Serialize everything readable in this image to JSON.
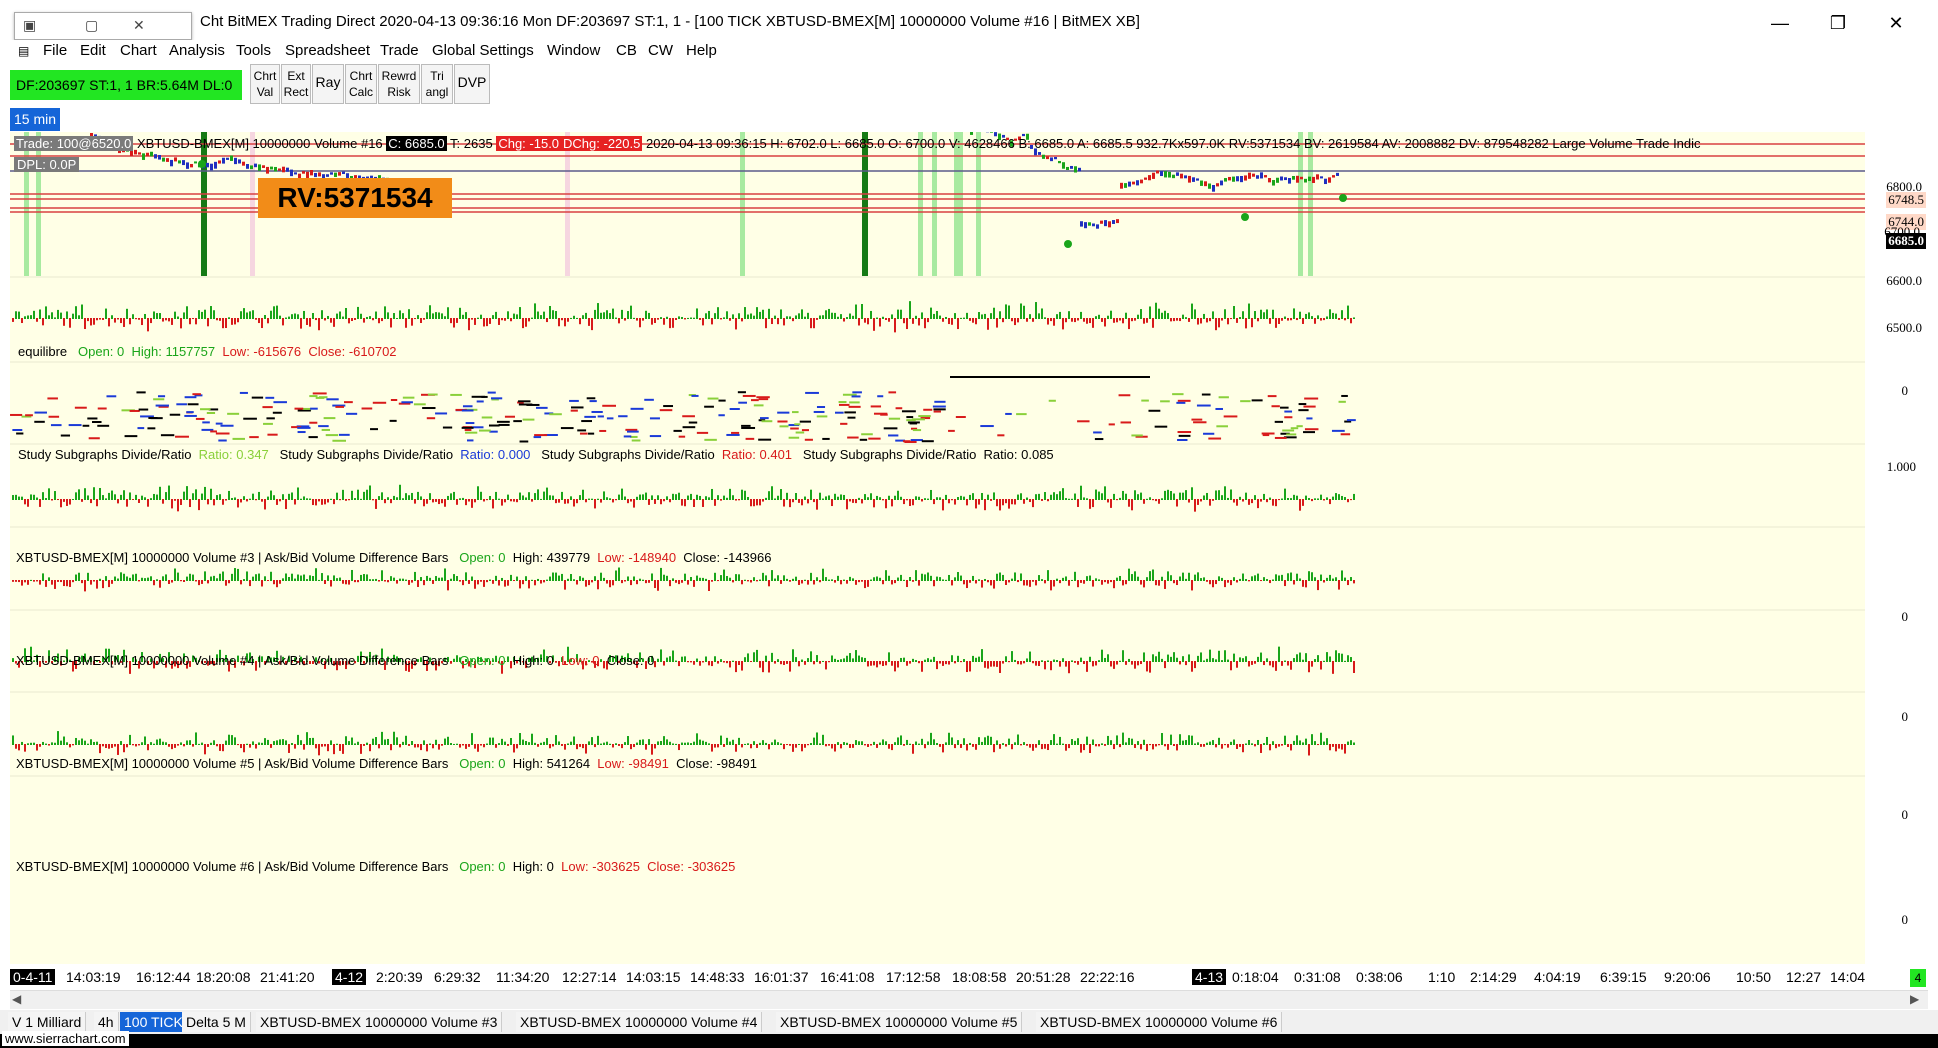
{
  "window": {
    "title": "Cht  BitMEX Trading Direct 2020-04-13  09:36:16 Mon  DF:203697  ST:1, 1 - [100 TICK  XBTUSD-BMEX[M]  10000000 Volume  #16 | BitMEX XB]",
    "minimize": "—",
    "restore": "❐",
    "close": "✕",
    "mini_restore": "▢",
    "mini_close": "✕"
  },
  "menu": [
    "File",
    "Edit",
    "Chart",
    "Analysis",
    "Tools",
    "Spreadsheet",
    "Trade",
    "Global Settings",
    "Window",
    "CB",
    "CW",
    "Help"
  ],
  "mdi_controls": {
    "min": "▁",
    "restore": "▫",
    "close": "✕"
  },
  "status": {
    "text": "DF:203697  ST:1, 1  BR:5.64M  DL:0"
  },
  "toolbar": [
    {
      "line1": "Chrt",
      "line2": "Val"
    },
    {
      "line1": "Ext",
      "line2": "Rect"
    },
    {
      "line1": "Ray",
      "line2": ""
    },
    {
      "line1": "Chrt",
      "line2": "Calc"
    },
    {
      "line1": "Rewrd",
      "line2": "Risk"
    },
    {
      "line1": "Tri",
      "line2": "angl"
    },
    {
      "line1": "DVP",
      "line2": ""
    }
  ],
  "timeframe": "15 min",
  "price_header": {
    "trade": "Trade: 100@6520.0",
    "symbol": " XBTUSD-BMEX[M]  10000000 Volume  #16",
    "close": "C: 6685.0",
    "t": "T: 2635",
    "chg": "Chg: -15.0",
    "dchg": "DChg: -220.5",
    "rest": "2020-04-13 09:36:15 H: 6702.0  L: 6685.0  O: 6700.0  V: 4628466  B: 6685.0  A: 6685.5  932.7Kx597.0K  RV:5371534  BV: 2619584  AV: 2008882  DV: 879548282  Large Volume Trade Indic"
  },
  "dpl": "DPL: 0.0P",
  "rv_label": "RV:5371534",
  "price_scale": {
    "labels": [
      "6800.0",
      "6600.0",
      "6500.0"
    ],
    "level_a": "6748.5",
    "level_b": "6744.0",
    "current": "6685.0",
    "ghost": "6700.0"
  },
  "panels": {
    "equilibre": {
      "name": "equilibre",
      "open": "Open: 0",
      "high": "High: 1157757",
      "low": "Low: -615676",
      "close": "Close: -610702",
      "zero": "0"
    },
    "ratio": {
      "items": [
        {
          "name": "Study Subgraphs Divide/Ratio",
          "value": "Ratio: 0.347"
        },
        {
          "name": "Study Subgraphs Divide/Ratio",
          "value": "Ratio: 0.000"
        },
        {
          "name": "Study Subgraphs Divide/Ratio",
          "value": "Ratio: 0.401"
        },
        {
          "name": "Study Subgraphs Divide/Ratio",
          "value": "Ratio: 0.085"
        }
      ],
      "scale": "1.000"
    },
    "vol3": {
      "name": "XBTUSD-BMEX[M]  10000000 Volume  #3 | Ask/Bid Volume Difference Bars",
      "open": "Open: 0",
      "high": "High: 439779",
      "low": "Low: -148940",
      "close": "Close: -143966",
      "zero": "0"
    },
    "vol4": {
      "name": "XBTUSD-BMEX[M]  10000000 Volume  #4 | Ask/Bid Volume Difference Bars",
      "open": "Open: 0",
      "high": "High: 0",
      "low": "Low: 0",
      "close": "Close: 0",
      "zero": "0"
    },
    "vol5": {
      "name": "XBTUSD-BMEX[M]  10000000 Volume  #5 | Ask/Bid Volume Difference Bars",
      "open": "Open: 0",
      "high": "High: 541264",
      "low": "Low: -98491",
      "close": "Close: -98491",
      "zero": "0"
    },
    "vol6": {
      "name": "XBTUSD-BMEX[M]  10000000 Volume  #6 | Ask/Bid Volume Difference Bars",
      "open": "Open: 0",
      "high": "High: 0",
      "low": "Low: -303625",
      "close": "Close: -303625",
      "zero": "0"
    }
  },
  "time_axis": [
    "0-4-11",
    "14:03:19",
    "16:12:44",
    "18:20:08",
    "21:41:20",
    "4-12",
    "2:20:39",
    "6:29:32",
    "11:34:20",
    "12:27:14",
    "14:03:15",
    "14:48:33",
    "16:01:37",
    "16:41:08",
    "17:12:58",
    "18:08:58",
    "20:51:28",
    "22:22:16",
    "4-13",
    "0:18:04",
    "0:31:08",
    "0:38:06",
    "1:10",
    "2:14:29",
    "4:04:19",
    "6:39:15",
    "9:20:06",
    "10:50",
    "12:27",
    "14:04"
  ],
  "side_tab": "4",
  "scroll": {
    "left": "◀",
    "right": "▶"
  },
  "chart_tabs": [
    "V 1 Milliard",
    "4h",
    "100 TICK",
    "Delta 5 M",
    "XBTUSD-BMEX  10000000 Volume  #3",
    "XBTUSD-BMEX  10000000 Volume  #4",
    "XBTUSD-BMEX  10000000 Volume  #5",
    "XBTUSD-BMEX  10000000 Volume  #6"
  ],
  "footer": "www.sierrachart.com",
  "colors": {
    "chart_bg": "#ffffe6",
    "up": "#1aa51a",
    "down": "#d81a1a",
    "highlight_green": "#22e622",
    "accent": "#1565d8"
  }
}
